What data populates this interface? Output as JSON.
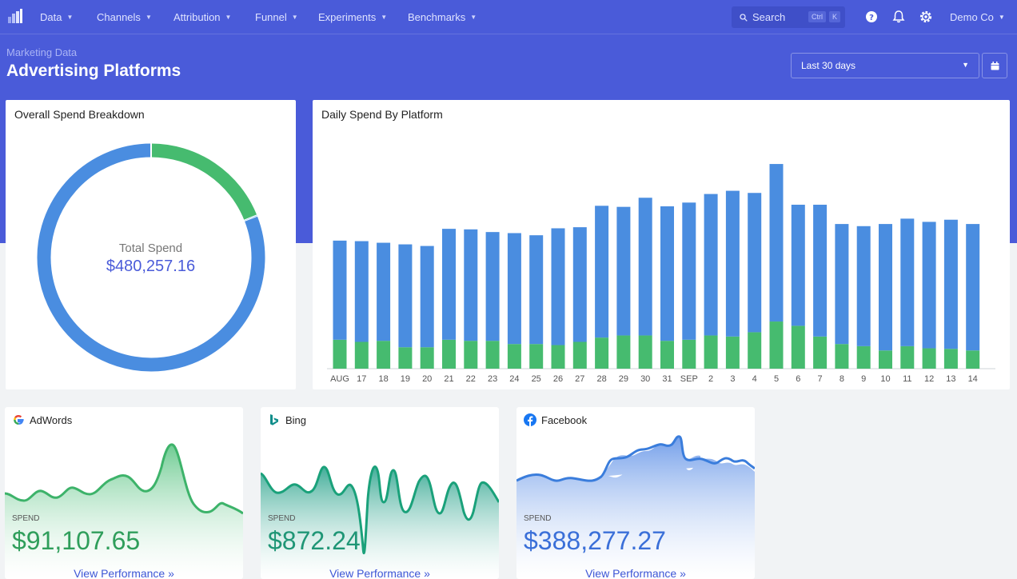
{
  "nav": {
    "items": [
      {
        "label": "Data"
      },
      {
        "label": "Channels"
      },
      {
        "label": "Attribution"
      },
      {
        "label": "Funnel"
      },
      {
        "label": "Experiments"
      },
      {
        "label": "Benchmarks"
      }
    ],
    "search": {
      "label": "Search",
      "shortcut_ctrl": "Ctrl",
      "shortcut_key": "K"
    },
    "account": "Demo Co"
  },
  "header": {
    "breadcrumb": "Marketing Data",
    "title": "Advertising Platforms",
    "date_range": "Last 30 days"
  },
  "colors": {
    "brand": "#4a5bd9",
    "blue_series": "#4a8de0",
    "green_series": "#46bb6f",
    "link": "#3d56d6"
  },
  "spend_breakdown": {
    "title": "Overall Spend Breakdown",
    "center_label": "Total Spend",
    "center_value": "$480,257.16"
  },
  "platforms": [
    {
      "name": "AdWords",
      "icon": "google-icon",
      "spend_label": "SPEND",
      "spend": "$91,107.65",
      "link": "View Performance »"
    },
    {
      "name": "Bing",
      "icon": "bing-icon",
      "spend_label": "SPEND",
      "spend": "$872.24",
      "link": "View Performance »"
    },
    {
      "name": "Facebook",
      "icon": "facebook-icon",
      "spend_label": "SPEND",
      "spend": "$388,277.27",
      "link": "View Performance »"
    }
  ],
  "chart_data": [
    {
      "type": "pie",
      "title": "Overall Spend Breakdown",
      "series": [
        {
          "values": [
            388277.27,
            91107.65,
            872.24
          ]
        }
      ]
    },
    {
      "type": "bar",
      "title": "Daily Spend By Platform",
      "categories": [
        "AUG",
        "17",
        "18",
        "19",
        "20",
        "21",
        "22",
        "23",
        "24",
        "25",
        "26",
        "27",
        "28",
        "29",
        "30",
        "31",
        "SEP",
        "2",
        "3",
        "4",
        "5",
        "6",
        "7",
        "8",
        "9",
        "10",
        "11",
        "12",
        "13",
        "14"
      ],
      "stacked": true,
      "series": [
        {
          "values": [
            9250,
            9400,
            9150,
            9600,
            9450,
            10350,
            10400,
            10150,
            10350,
            10150,
            10900,
            10700,
            12300,
            12000,
            12850,
            12550,
            12800,
            13200,
            13600,
            13000,
            14700,
            11300,
            12300,
            11200,
            11200,
            11800,
            11900,
            11800,
            12050,
            11800
          ]
        },
        {
          "values": [
            2700,
            2500,
            2600,
            2000,
            2000,
            2700,
            2600,
            2600,
            2300,
            2300,
            2200,
            2500,
            2900,
            3100,
            3100,
            2600,
            2700,
            3100,
            3000,
            3400,
            4400,
            4000,
            3000,
            2300,
            2100,
            1700,
            2100,
            1900,
            1850,
            1700
          ]
        }
      ],
      "ylim": [
        0,
        20000
      ],
      "grid": false
    }
  ]
}
